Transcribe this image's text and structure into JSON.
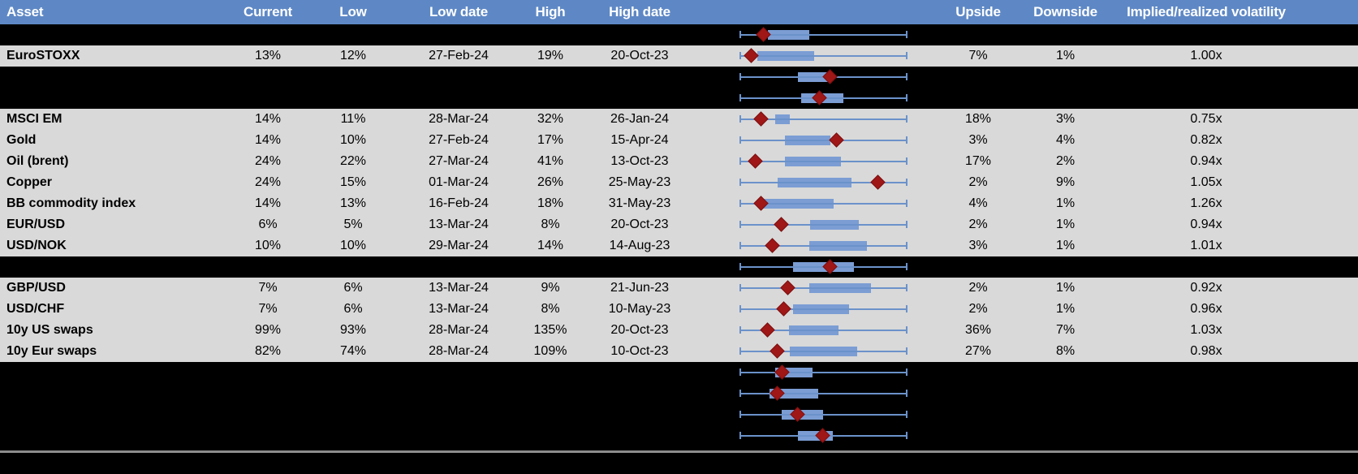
{
  "title": "Implied volatility monitor table",
  "header": {
    "asset": "Asset",
    "current": "Current",
    "low": "Low",
    "low_date": "Low date",
    "high": "High",
    "high_date": "High date",
    "upside": "Upside",
    "downside": "Downside",
    "irv": "Implied/realized volatility"
  },
  "colors": {
    "header_bg": "#5e88c5",
    "header_text": "#ffffff",
    "data_row_bg": "#d9d9d9",
    "blank_row_bg": "#000000",
    "whisker": "#6b92ca",
    "box_fill": "#7b9dd4",
    "marker": "#9f1717",
    "divider": "#8c8c8c",
    "text": "#000000"
  },
  "chart_data": {
    "type": "table",
    "columns": [
      "Asset",
      "Current",
      "Low",
      "Low date",
      "High",
      "High date",
      "Range boxplot",
      "Upside",
      "Downside",
      "Implied/realized volatility"
    ],
    "boxplot_legend": "Each row: full-range whisker (0-1 normalized), inner box, dark-red diamond = current level",
    "rows": [
      {
        "blank": true,
        "asset": "",
        "current": "",
        "low": "",
        "low_date": "",
        "high": "",
        "high_date": "",
        "upside": "",
        "downside": "",
        "irv": "",
        "box_lo": 0.166,
        "box_hi": 0.415,
        "marker": 0.137
      },
      {
        "blank": false,
        "asset": "EuroSTOXX",
        "current": "13%",
        "low": "12%",
        "low_date": "27-Feb-24",
        "high": "19%",
        "high_date": "20-Oct-23",
        "upside": "7%",
        "downside": "1%",
        "irv": "1.00x",
        "box_lo": 0.102,
        "box_hi": 0.444,
        "marker": 0.068
      },
      {
        "blank": true,
        "asset": "",
        "current": "",
        "low": "",
        "low_date": "",
        "high": "",
        "high_date": "",
        "upside": "",
        "downside": "",
        "irv": "",
        "box_lo": 0.346,
        "box_hi": 0.551,
        "marker": 0.537
      },
      {
        "blank": true,
        "asset": "",
        "current": "",
        "low": "",
        "low_date": "",
        "high": "",
        "high_date": "",
        "upside": "",
        "downside": "",
        "irv": "",
        "box_lo": 0.366,
        "box_hi": 0.62,
        "marker": 0.478
      },
      {
        "blank": false,
        "asset": "MSCI EM",
        "current": "14%",
        "low": "11%",
        "low_date": "28-Mar-24",
        "high": "32%",
        "high_date": "26-Jan-24",
        "upside": "18%",
        "downside": "3%",
        "irv": "0.75x",
        "box_lo": 0.21,
        "box_hi": 0.298,
        "marker": 0.122
      },
      {
        "blank": false,
        "asset": "Gold",
        "current": "14%",
        "low": "10%",
        "low_date": "27-Feb-24",
        "high": "17%",
        "high_date": "15-Apr-24",
        "upside": "3%",
        "downside": "4%",
        "irv": "0.82x",
        "box_lo": 0.268,
        "box_hi": 0.541,
        "marker": 0.58
      },
      {
        "blank": false,
        "asset": "Oil (brent)",
        "current": "24%",
        "low": "22%",
        "low_date": "27-Mar-24",
        "high": "41%",
        "high_date": "13-Oct-23",
        "upside": "17%",
        "downside": "2%",
        "irv": "0.94x",
        "box_lo": 0.268,
        "box_hi": 0.605,
        "marker": 0.088
      },
      {
        "blank": false,
        "asset": "Copper",
        "current": "24%",
        "low": "15%",
        "low_date": "01-Mar-24",
        "high": "26%",
        "high_date": "25-May-23",
        "upside": "2%",
        "downside": "9%",
        "irv": "1.05x",
        "box_lo": 0.224,
        "box_hi": 0.668,
        "marker": 0.829
      },
      {
        "blank": false,
        "asset": "BB commodity index",
        "current": "14%",
        "low": "13%",
        "low_date": "16-Feb-24",
        "high": "18%",
        "high_date": "31-May-23",
        "upside": "4%",
        "downside": "1%",
        "irv": "1.26x",
        "box_lo": 0.137,
        "box_hi": 0.561,
        "marker": 0.122
      },
      {
        "blank": false,
        "asset": "EUR/USD",
        "current": "6%",
        "low": "5%",
        "low_date": "13-Mar-24",
        "high": "8%",
        "high_date": "20-Oct-23",
        "upside": "2%",
        "downside": "1%",
        "irv": "0.94x",
        "box_lo": 0.42,
        "box_hi": 0.712,
        "marker": 0.244
      },
      {
        "blank": false,
        "asset": "USD/NOK",
        "current": "10%",
        "low": "10%",
        "low_date": "29-Mar-24",
        "high": "14%",
        "high_date": "14-Aug-23",
        "upside": "3%",
        "downside": "1%",
        "irv": "1.01x",
        "box_lo": 0.415,
        "box_hi": 0.761,
        "marker": 0.195
      },
      {
        "blank": true,
        "asset": "",
        "current": "",
        "low": "",
        "low_date": "",
        "high": "",
        "high_date": "",
        "upside": "",
        "downside": "",
        "irv": "",
        "box_lo": 0.317,
        "box_hi": 0.683,
        "marker": 0.537
      },
      {
        "blank": false,
        "asset": "GBP/USD",
        "current": "7%",
        "low": "6%",
        "low_date": "13-Mar-24",
        "high": "9%",
        "high_date": "21-Jun-23",
        "upside": "2%",
        "downside": "1%",
        "irv": "0.92x",
        "box_lo": 0.415,
        "box_hi": 0.785,
        "marker": 0.283
      },
      {
        "blank": false,
        "asset": "USD/CHF",
        "current": "7%",
        "low": "6%",
        "low_date": "13-Mar-24",
        "high": "8%",
        "high_date": "10-May-23",
        "upside": "2%",
        "downside": "1%",
        "irv": "0.96x",
        "box_lo": 0.317,
        "box_hi": 0.654,
        "marker": 0.259
      },
      {
        "blank": false,
        "asset": "10y US swaps",
        "current": "99%",
        "low": "93%",
        "low_date": "28-Mar-24",
        "high": "135%",
        "high_date": "20-Oct-23",
        "upside": "36%",
        "downside": "7%",
        "irv": "1.03x",
        "box_lo": 0.293,
        "box_hi": 0.59,
        "marker": 0.161
      },
      {
        "blank": false,
        "asset": "10y Eur swaps",
        "current": "82%",
        "low": "74%",
        "low_date": "28-Mar-24",
        "high": "109%",
        "high_date": "10-Oct-23",
        "upside": "27%",
        "downside": "8%",
        "irv": "0.98x",
        "box_lo": 0.298,
        "box_hi": 0.702,
        "marker": 0.22
      },
      {
        "blank": true,
        "asset": "",
        "current": "",
        "low": "",
        "low_date": "",
        "high": "",
        "high_date": "",
        "upside": "",
        "downside": "",
        "irv": "",
        "box_lo": 0.21,
        "box_hi": 0.434,
        "marker": 0.249
      },
      {
        "blank": true,
        "asset": "",
        "current": "",
        "low": "",
        "low_date": "",
        "high": "",
        "high_date": "",
        "upside": "",
        "downside": "",
        "irv": "",
        "box_lo": 0.176,
        "box_hi": 0.468,
        "marker": 0.224
      },
      {
        "blank": true,
        "asset": "",
        "current": "",
        "low": "",
        "low_date": "",
        "high": "",
        "high_date": "",
        "upside": "",
        "downside": "",
        "irv": "",
        "box_lo": 0.249,
        "box_hi": 0.498,
        "marker": 0.346
      },
      {
        "blank": true,
        "asset": "",
        "current": "",
        "low": "",
        "low_date": "",
        "high": "",
        "high_date": "",
        "upside": "",
        "downside": "",
        "irv": "",
        "box_lo": 0.346,
        "box_hi": 0.556,
        "marker": 0.493
      }
    ]
  }
}
